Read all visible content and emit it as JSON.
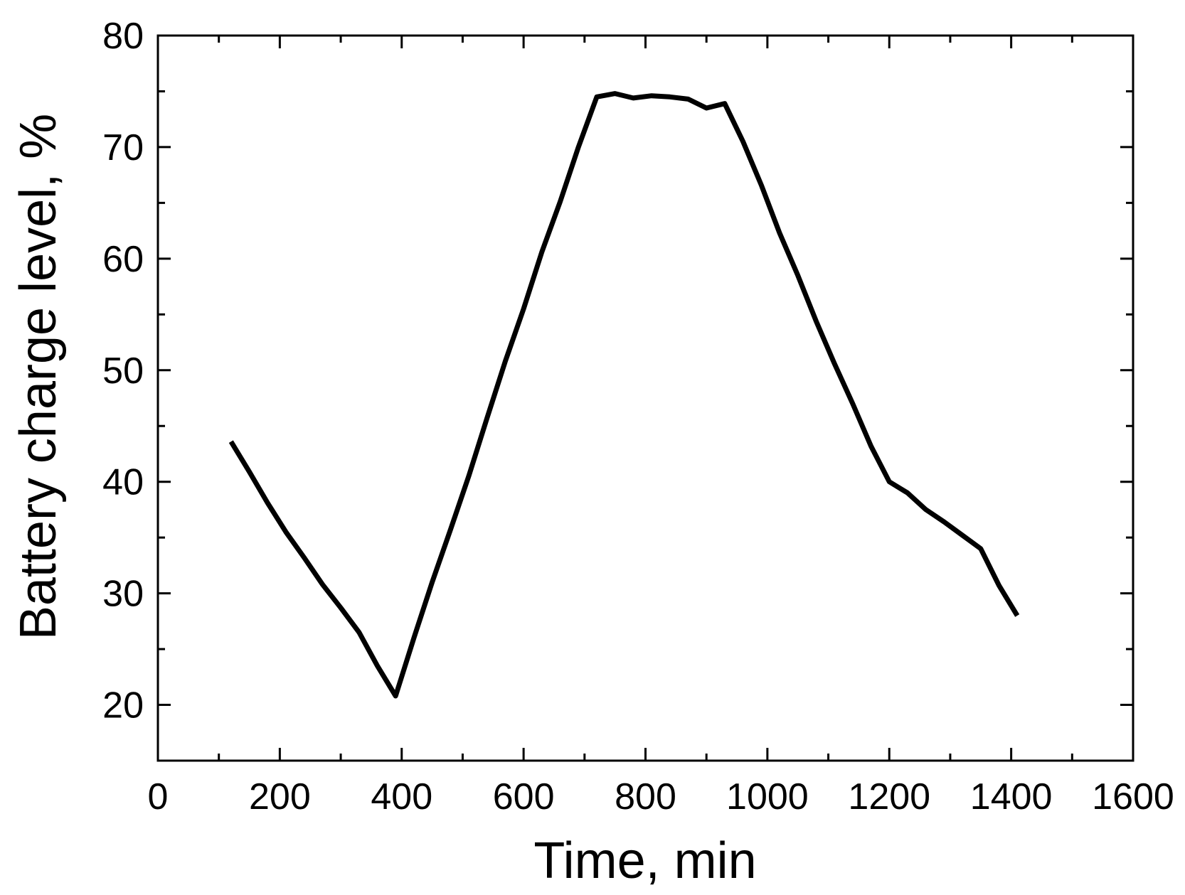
{
  "chart_data": {
    "type": "line",
    "title": "",
    "xlabel": "Time, min",
    "ylabel": "Battery charge level, %",
    "xlim": [
      0,
      1600
    ],
    "ylim": [
      15,
      80
    ],
    "x_ticks": [
      0,
      200,
      400,
      600,
      800,
      1000,
      1200,
      1400,
      1600
    ],
    "y_ticks": [
      20,
      30,
      40,
      50,
      60,
      70,
      80
    ],
    "x_minor_ticks": [
      100,
      300,
      500,
      700,
      900,
      1100,
      1300,
      1500
    ],
    "y_minor_ticks": [
      25,
      35,
      45,
      55,
      65,
      75
    ],
    "grid": false,
    "line_color": "#000000",
    "series": [
      {
        "x": [
          120,
          150,
          180,
          210,
          240,
          270,
          300,
          330,
          360,
          390,
          420,
          450,
          480,
          510,
          540,
          570,
          600,
          630,
          660,
          690,
          720,
          750,
          780,
          810,
          840,
          870,
          900,
          930,
          960,
          990,
          1020,
          1050,
          1080,
          1110,
          1140,
          1170,
          1200,
          1230,
          1260,
          1290,
          1320,
          1350,
          1380,
          1410
        ],
        "y": [
          43.6,
          40.9,
          38.1,
          35.5,
          33.2,
          30.8,
          28.7,
          26.5,
          23.5,
          20.8,
          26.0,
          31.0,
          35.7,
          40.5,
          45.7,
          50.8,
          55.5,
          60.6,
          65.1,
          70.0,
          74.5,
          74.8,
          74.4,
          74.6,
          74.5,
          74.3,
          73.5,
          73.9,
          70.5,
          66.6,
          62.3,
          58.5,
          54.4,
          50.6,
          47.0,
          43.2,
          40.0,
          39.0,
          37.5,
          36.4,
          35.2,
          34.0,
          30.7,
          28.0
        ]
      }
    ]
  }
}
